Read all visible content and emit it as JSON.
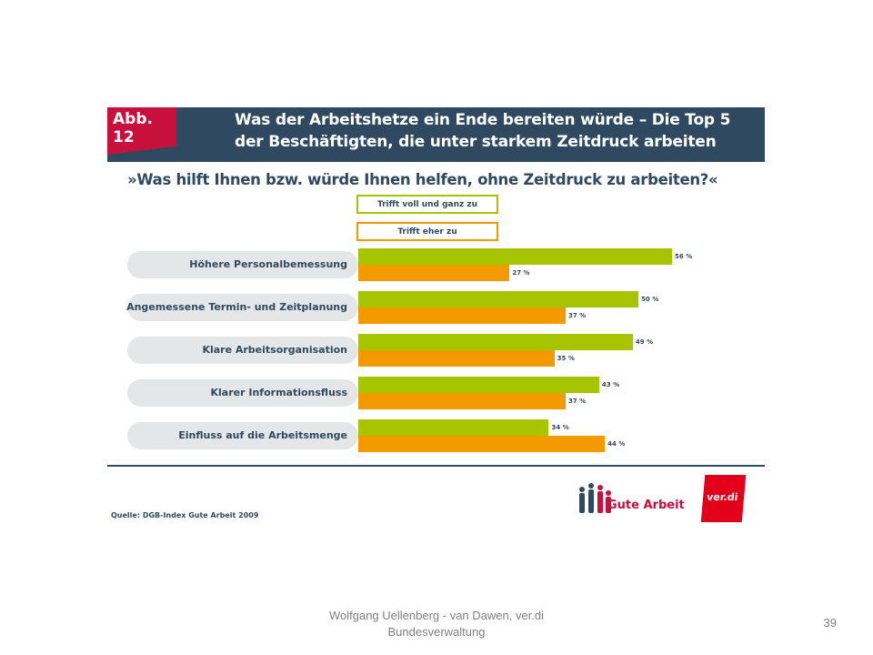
{
  "figure": {
    "tag": "Abb. 12",
    "title": "Was der Arbeitshetze ein Ende bereiten würde – Die Top 5 der Beschäftigten, die unter starkem Zeitdruck arbeiten",
    "subtitle": "»Was hilft Ihnen bzw. würde Ihnen helfen, ohne Zeitdruck zu arbeiten?«",
    "source": "Quelle: DGB-Index Gute Arbeit 2009",
    "logos": {
      "gute_arbeit": "Gute Arbeit",
      "verdi": "ver.di"
    }
  },
  "chart_data": {
    "type": "bar",
    "orientation": "horizontal",
    "categories": [
      "Höhere Personalbemessung",
      "Angemessene Termin- und Zeitplanung",
      "Klare Arbeitsorganisation",
      "Klarer Informationsfluss",
      "Einfluss auf die Arbeitsmenge"
    ],
    "series": [
      {
        "name": "Trifft voll und ganz zu",
        "color": "#a6c400",
        "values": [
          56,
          50,
          49,
          43,
          34
        ]
      },
      {
        "name": "Trifft eher zu",
        "color": "#f29a00",
        "values": [
          27,
          37,
          35,
          37,
          44
        ]
      }
    ],
    "value_suffix": " %",
    "xlim": [
      0,
      62
    ],
    "legend_position": "top"
  },
  "footer": {
    "author": "Wolfgang Uellenberg - van Dawen, ver.di Bundesverwaltung",
    "page_number": "39"
  },
  "colors": {
    "header": "#2f4a60",
    "tag": "#c8103c",
    "pill": "#e4e6e8"
  }
}
